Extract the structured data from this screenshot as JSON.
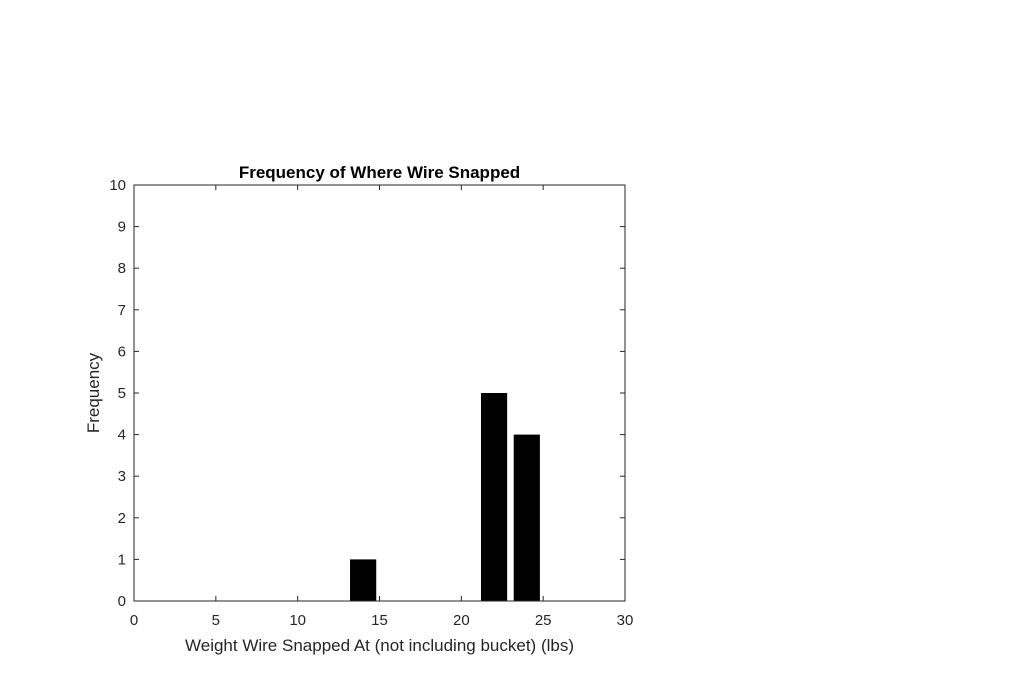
{
  "chart_data": {
    "type": "bar",
    "title": "Frequency of Where Wire Snapped",
    "xlabel": "Weight Wire Snapped At (not including bucket) (lbs)",
    "ylabel": "Frequency",
    "xlim": [
      0,
      30
    ],
    "ylim": [
      0,
      10
    ],
    "xticks": [
      0,
      5,
      10,
      15,
      20,
      25,
      30
    ],
    "yticks": [
      0,
      1,
      2,
      3,
      4,
      5,
      6,
      7,
      8,
      9,
      10
    ],
    "bar_width": 1.6,
    "x": [
      2,
      4,
      6,
      8,
      10,
      12,
      14,
      16,
      18,
      20,
      22,
      24,
      26,
      28
    ],
    "values": [
      0,
      0,
      0,
      0,
      0,
      0,
      1,
      0,
      0,
      0,
      5,
      4,
      0,
      0
    ],
    "bar_color": "#000000",
    "grid": false,
    "box": true
  }
}
